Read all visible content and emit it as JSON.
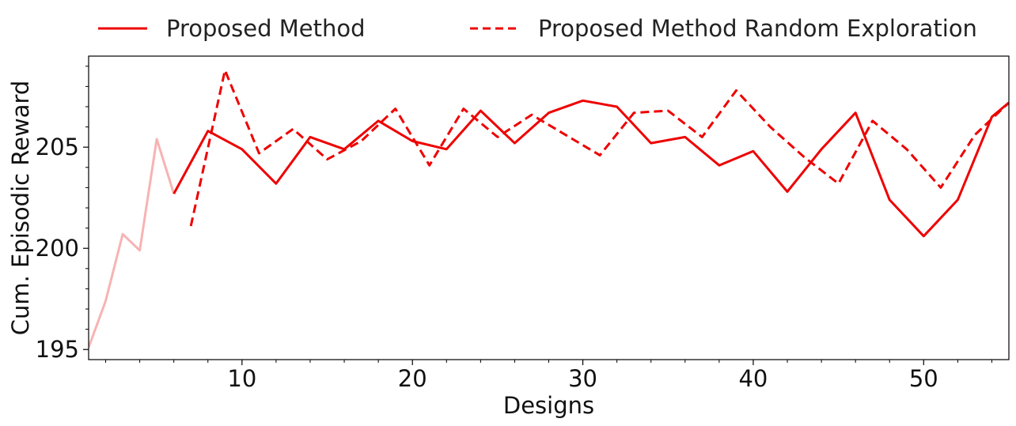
{
  "chart_data": {
    "type": "line",
    "xlabel": "Designs",
    "ylabel": "Cum. Episodic Reward",
    "xlim": [
      1,
      55
    ],
    "ylim": [
      194.5,
      209.5
    ],
    "xticks": [
      10,
      20,
      30,
      40,
      50
    ],
    "yticks": [
      195,
      200,
      205
    ],
    "grid": false,
    "legend_placement": "top, outside plot",
    "colors": {
      "primary": "#ee0000",
      "faded": "#f7b3b3",
      "axis": "#000000"
    },
    "series": [
      {
        "name": "",
        "style": "solid-faded",
        "x": [
          1,
          2,
          3,
          4,
          5,
          6
        ],
        "y": [
          195.1,
          197.4,
          200.7,
          199.9,
          205.4,
          202.7
        ]
      },
      {
        "name": "Proposed Method",
        "style": "solid",
        "x": [
          6,
          8,
          10,
          12,
          14,
          16,
          18,
          20,
          22,
          24,
          26,
          28,
          30,
          32,
          34,
          36,
          38,
          40,
          42,
          44,
          46,
          48,
          50,
          52,
          54,
          55
        ],
        "y": [
          202.7,
          205.8,
          204.9,
          203.2,
          205.5,
          204.9,
          206.3,
          205.3,
          204.9,
          206.8,
          205.2,
          206.7,
          207.3,
          207.0,
          205.2,
          205.5,
          204.1,
          204.8,
          202.8,
          204.9,
          206.7,
          202.4,
          200.6,
          202.4,
          206.5,
          207.2
        ]
      },
      {
        "name": "Proposed Method Random Exploration",
        "style": "dashed",
        "x": [
          7,
          9,
          11,
          13,
          15,
          17,
          19,
          21,
          23,
          25,
          27,
          29,
          31,
          33,
          35,
          37,
          39,
          41,
          43,
          45,
          47,
          49,
          51,
          53,
          55
        ],
        "y": [
          201.1,
          208.8,
          204.7,
          205.9,
          204.4,
          205.3,
          206.9,
          204.1,
          206.9,
          205.5,
          206.6,
          205.6,
          204.6,
          206.7,
          206.8,
          205.5,
          207.8,
          206.0,
          204.5,
          203.2,
          206.3,
          204.9,
          203.0,
          205.6,
          207.2
        ]
      }
    ]
  }
}
